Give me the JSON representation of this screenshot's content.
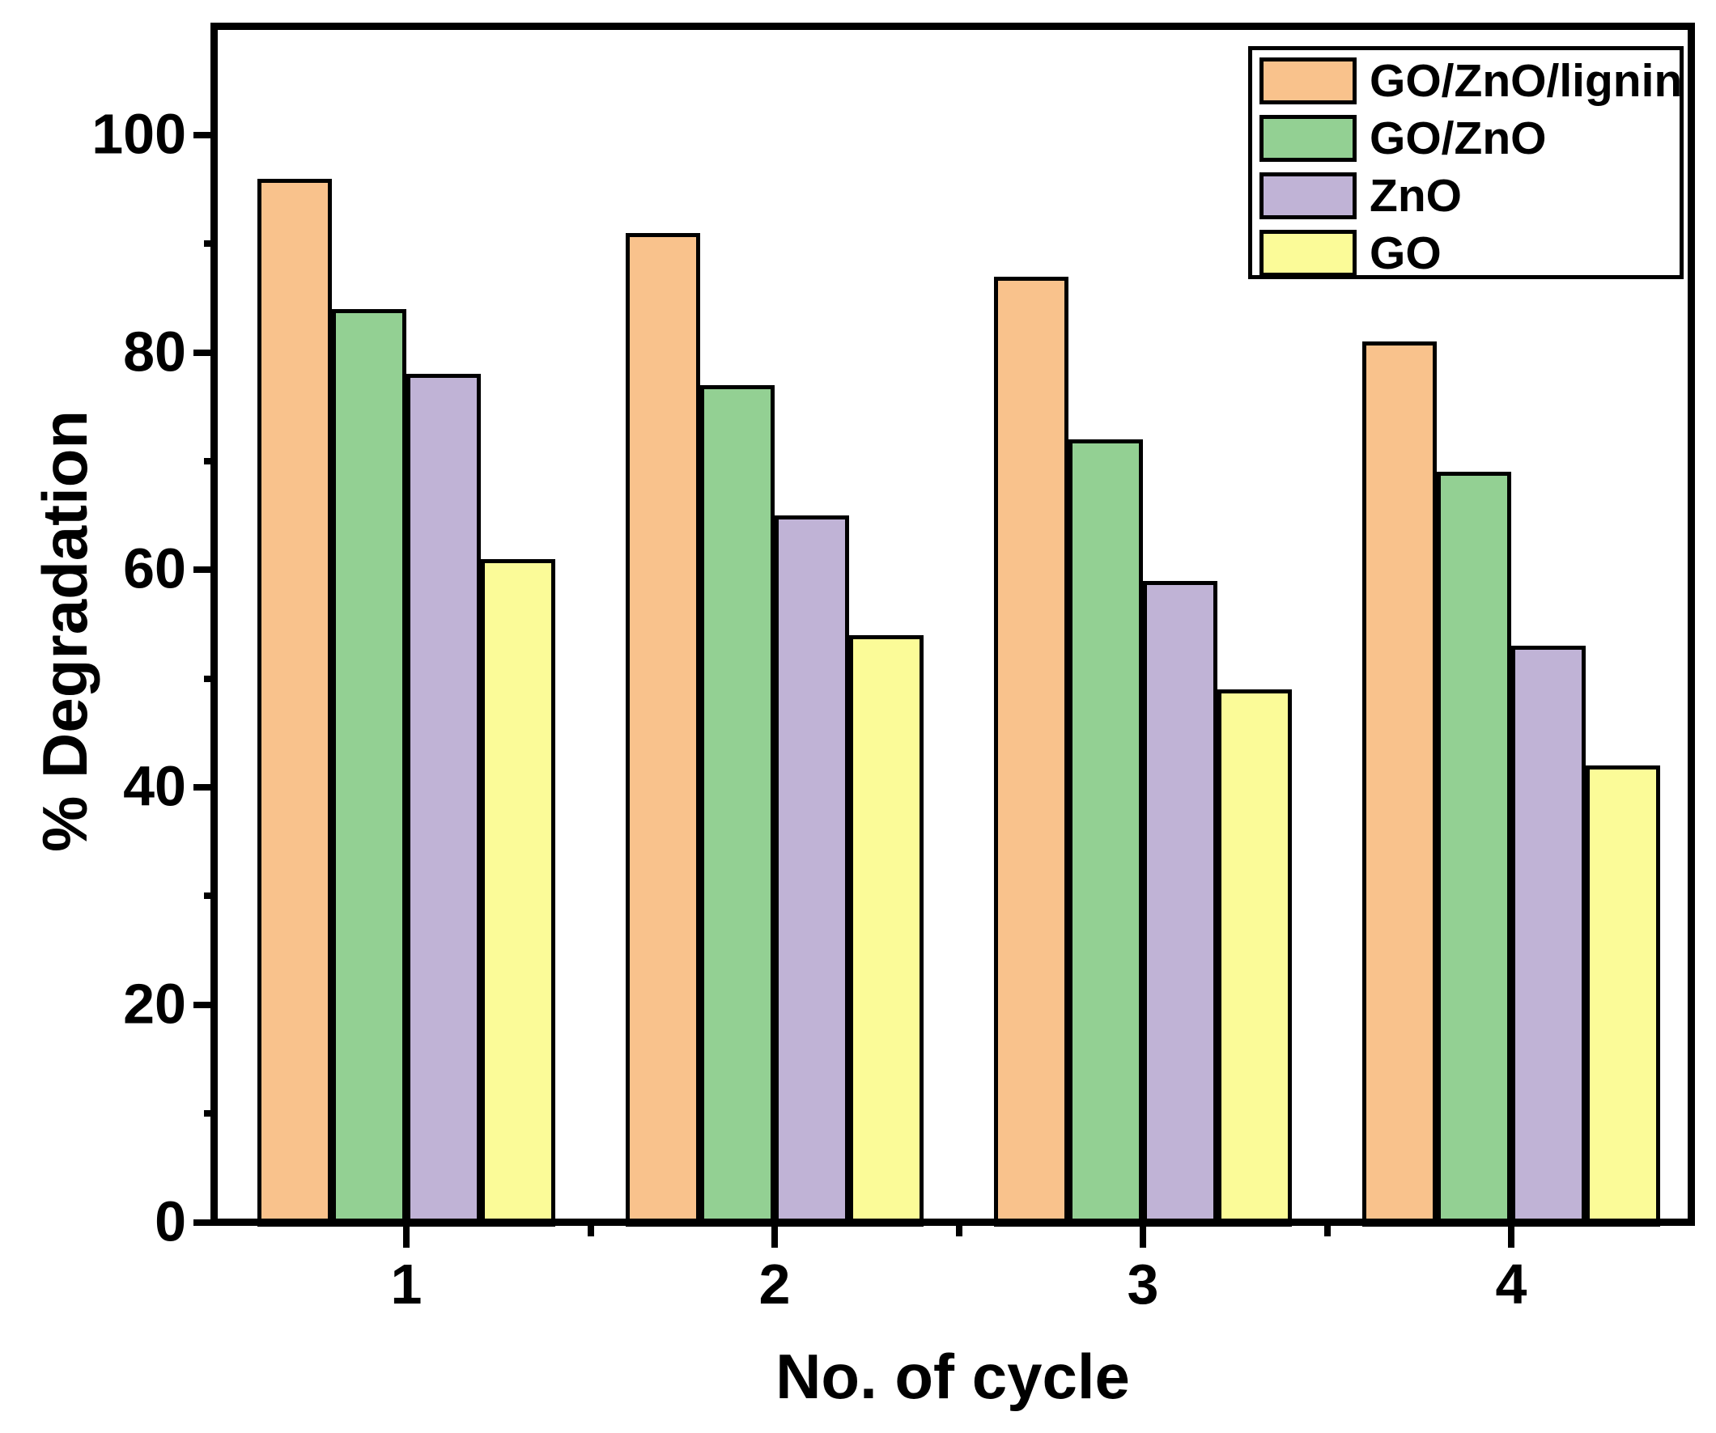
{
  "chart_data": {
    "type": "bar",
    "title": "",
    "xlabel": "No. of cycle",
    "ylabel": "% Degradation",
    "categories": [
      "1",
      "2",
      "3",
      "4"
    ],
    "series": [
      {
        "name": "GO/ZnO/lignin",
        "color": "#F9C28C",
        "values": [
          96,
          91,
          87,
          81
        ]
      },
      {
        "name": "GO/ZnO",
        "color": "#93D093",
        "values": [
          84,
          77,
          72,
          69
        ]
      },
      {
        "name": "ZnO",
        "color": "#C0B3D6",
        "values": [
          78,
          65,
          59,
          53
        ]
      },
      {
        "name": "GO",
        "color": "#FBFB98",
        "values": [
          61,
          54,
          49,
          42
        ]
      }
    ],
    "ylim": [
      0,
      110
    ],
    "y_major_ticks": [
      0,
      20,
      40,
      60,
      80,
      100
    ],
    "y_minor_ticks": [
      10,
      30,
      50,
      70,
      90
    ],
    "x_minor_ticks": [
      1.5,
      2.5,
      3.5
    ],
    "legend_position": "top-right",
    "grid": false,
    "bar_outline_color": "#000000",
    "frame_color": "#000000",
    "background_color": "#ffffff"
  }
}
